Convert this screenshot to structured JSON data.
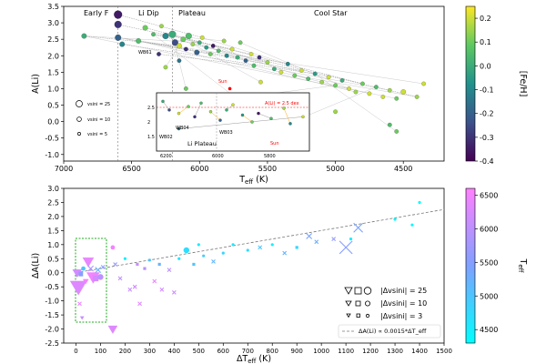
{
  "chart_data": [
    {
      "type": "scatter",
      "xlabel": "T_eff (K)",
      "ylabel": "A(Li)",
      "xlim": [
        7000,
        4200
      ],
      "ylim": [
        -1.2,
        3.5
      ],
      "x_axis_reversed": true,
      "grid": false,
      "xticks": [
        7000,
        6500,
        6000,
        5500,
        5000,
        4500
      ],
      "yticks": [
        -1.0,
        -0.5,
        0.0,
        0.5,
        1.0,
        1.5,
        2.0,
        2.5,
        3.0,
        3.5
      ],
      "region_labels": [
        "Early F",
        "Li Dip",
        "Plateau",
        "Cool Star"
      ],
      "region_boundaries": [
        6600,
        6200
      ],
      "marker_size_legend": [
        "vsini = 25",
        "vsini = 10",
        "vsini = 5"
      ],
      "colorbar": {
        "label": "[Fe/H]",
        "range": [
          -0.4,
          0.25
        ],
        "ticks": [
          0.2,
          0.1,
          0.0,
          -0.1,
          -0.2,
          -0.3,
          -0.4
        ],
        "colors": [
          "#440154",
          "#3b528b",
          "#21918c",
          "#5ec962",
          "#fde725"
        ]
      },
      "sun_label": "Sun",
      "points": [
        {
          "x": 6850,
          "y": 2.6,
          "feh": 0.0,
          "s": 4
        },
        {
          "x": 6600,
          "y": 3.25,
          "feh": -0.35,
          "s": 7
        },
        {
          "x": 6600,
          "y": 2.95,
          "feh": -0.3,
          "s": 6
        },
        {
          "x": 6600,
          "y": 2.55,
          "feh": -0.2,
          "s": 5
        },
        {
          "x": 6570,
          "y": 2.35,
          "feh": -0.1,
          "s": 4
        },
        {
          "x": 6400,
          "y": 2.85,
          "feh": 0.1,
          "s": 4
        },
        {
          "x": 6340,
          "y": 2.65,
          "feh": 0.05,
          "s": 3
        },
        {
          "x": 6280,
          "y": 2.9,
          "feh": 0.15,
          "s": 3
        },
        {
          "x": 6250,
          "y": 2.6,
          "feh": -0.1,
          "s": 5
        },
        {
          "x": 6200,
          "y": 2.65,
          "feh": 0.0,
          "s": 6
        },
        {
          "x": 6180,
          "y": 2.4,
          "feh": -0.25,
          "s": 5
        },
        {
          "x": 6150,
          "y": 2.3,
          "feh": 0.2,
          "s": 4
        },
        {
          "x": 6120,
          "y": 2.5,
          "feh": 0.1,
          "s": 4
        },
        {
          "x": 6100,
          "y": 2.2,
          "feh": -0.3,
          "s": 3
        },
        {
          "x": 6080,
          "y": 2.6,
          "feh": 0.05,
          "s": 5
        },
        {
          "x": 6050,
          "y": 2.35,
          "feh": 0.15,
          "s": 3
        },
        {
          "x": 6020,
          "y": 2.1,
          "feh": -0.2,
          "s": 4
        },
        {
          "x": 6000,
          "y": 2.4,
          "feh": 0.0,
          "s": 3
        },
        {
          "x": 5980,
          "y": 2.55,
          "feh": 0.2,
          "s": 3
        },
        {
          "x": 5950,
          "y": 2.25,
          "feh": -0.05,
          "s": 3
        },
        {
          "x": 5920,
          "y": 2.05,
          "feh": 0.1,
          "s": 3
        },
        {
          "x": 5900,
          "y": 2.3,
          "feh": -0.35,
          "s": 3
        },
        {
          "x": 5860,
          "y": 2.15,
          "feh": 0.05,
          "s": 3
        },
        {
          "x": 5820,
          "y": 2.45,
          "feh": 0.15,
          "s": 3
        },
        {
          "x": 5800,
          "y": 2.0,
          "feh": -0.1,
          "s": 3
        },
        {
          "x": 5760,
          "y": 2.2,
          "feh": 0.2,
          "s": 3
        },
        {
          "x": 5720,
          "y": 1.95,
          "feh": 0.0,
          "s": 3
        },
        {
          "x": 5700,
          "y": 2.4,
          "feh": 0.1,
          "s": 3
        },
        {
          "x": 5660,
          "y": 1.85,
          "feh": -0.2,
          "s": 3
        },
        {
          "x": 5620,
          "y": 2.05,
          "feh": 0.2,
          "s": 3
        },
        {
          "x": 5600,
          "y": 1.7,
          "feh": 0.05,
          "s": 3
        },
        {
          "x": 5560,
          "y": 1.95,
          "feh": -0.3,
          "s": 3
        },
        {
          "x": 5500,
          "y": 1.8,
          "feh": 0.15,
          "s": 3
        },
        {
          "x": 5450,
          "y": 1.6,
          "feh": 0.0,
          "s": 3
        },
        {
          "x": 5400,
          "y": 1.5,
          "feh": 0.2,
          "s": 3
        },
        {
          "x": 5350,
          "y": 1.75,
          "feh": -0.1,
          "s": 3
        },
        {
          "x": 5300,
          "y": 1.4,
          "feh": 0.1,
          "s": 3
        },
        {
          "x": 5250,
          "y": 1.55,
          "feh": 0.2,
          "s": 3
        },
        {
          "x": 5200,
          "y": 1.3,
          "feh": 0.05,
          "s": 3
        },
        {
          "x": 5150,
          "y": 1.45,
          "feh": -0.05,
          "s": 3
        },
        {
          "x": 5100,
          "y": 1.2,
          "feh": 0.15,
          "s": 3
        },
        {
          "x": 5050,
          "y": 1.35,
          "feh": 0.2,
          "s": 3
        },
        {
          "x": 5000,
          "y": 1.1,
          "feh": 0.1,
          "s": 3
        },
        {
          "x": 4950,
          "y": 1.25,
          "feh": 0.0,
          "s": 3
        },
        {
          "x": 4900,
          "y": 1.0,
          "feh": 0.2,
          "s": 3
        },
        {
          "x": 4850,
          "y": 0.9,
          "feh": 0.15,
          "s": 3
        },
        {
          "x": 4800,
          "y": 1.15,
          "feh": 0.1,
          "s": 3
        },
        {
          "x": 4750,
          "y": 0.85,
          "feh": 0.2,
          "s": 3
        },
        {
          "x": 4700,
          "y": 1.05,
          "feh": 0.05,
          "s": 3
        },
        {
          "x": 4650,
          "y": 0.75,
          "feh": 0.2,
          "s": 3
        },
        {
          "x": 4600,
          "y": 0.95,
          "feh": 0.15,
          "s": 3
        },
        {
          "x": 4550,
          "y": 0.7,
          "feh": 0.1,
          "s": 3
        },
        {
          "x": 4500,
          "y": 0.9,
          "feh": 0.2,
          "s": 4
        },
        {
          "x": 4400,
          "y": 0.75,
          "feh": 0.15,
          "s": 3
        },
        {
          "x": 4350,
          "y": 1.15,
          "feh": 0.2,
          "s": 3
        },
        {
          "x": 4600,
          "y": -0.1,
          "feh": 0.05,
          "s": 3
        },
        {
          "x": 4550,
          "y": -0.3,
          "feh": 0.1,
          "s": 3
        },
        {
          "x": 5600,
          "y": 0.3,
          "feh": 0.15,
          "s": 3
        },
        {
          "x": 5450,
          "y": 0.1,
          "feh": 0.0,
          "s": 3
        },
        {
          "x": 5850,
          "y": 0.65,
          "feh": 0.2,
          "s": 3
        },
        {
          "x": 6100,
          "y": 1.0,
          "feh": 0.1,
          "s": 3
        },
        {
          "x": 6300,
          "y": 2.05,
          "feh": -0.3,
          "s": 3
        },
        {
          "x": 6450,
          "y": 2.45,
          "feh": 0.05,
          "s": 4
        },
        {
          "x": 6250,
          "y": 1.65,
          "feh": 0.15,
          "s": 3
        },
        {
          "x": 6150,
          "y": 1.85,
          "feh": -0.15,
          "s": 3
        },
        {
          "x": 5400,
          "y": -0.15,
          "feh": 0.05,
          "s": 3
        },
        {
          "x": 5550,
          "y": 1.2,
          "feh": 0.2,
          "s": 3
        },
        {
          "x": 5000,
          "y": 0.3,
          "feh": 0.15,
          "s": 3
        }
      ],
      "inset": {
        "label": "Li Plateau",
        "ref_line_label": "A(Li) = 2.5 dex",
        "xticks": [
          6200,
          6000,
          5800
        ],
        "yticks": [
          1.5,
          2.0,
          2.5
        ],
        "sun_label": "Sun",
        "point_labels": [
          "WB02",
          "WB03",
          "WB04"
        ]
      },
      "point_labels": [
        "WB61"
      ]
    },
    {
      "type": "scatter",
      "xlabel": "ΔT_eff (K)",
      "ylabel": "ΔA(Li)",
      "xlim": [
        -50,
        1500
      ],
      "ylim": [
        -2.5,
        3.0
      ],
      "xticks": [
        0,
        100,
        200,
        300,
        400,
        500,
        600,
        700,
        800,
        900,
        1000,
        1100,
        1200,
        1300,
        1400,
        1500
      ],
      "yticks": [
        -2.5,
        -2.0,
        -1.5,
        -1.0,
        -0.5,
        0.0,
        0.5,
        1.0,
        1.5,
        2.0,
        2.5,
        3.0
      ],
      "fit": {
        "label": "ΔA(Li) ∝ 0.0015*ΔT_eff",
        "slope": 0.0015,
        "intercept": 0.0
      },
      "marker_legend": [
        "|Δvsini| = 25",
        "|Δvsini| = 10",
        "|Δvsini| = 3"
      ],
      "colorbar": {
        "label": "T_eff",
        "range": [
          4300,
          6600
        ],
        "ticks": [
          6500,
          6000,
          5500,
          5000,
          4500
        ],
        "colors": [
          "#00ffff",
          "#80a0ff",
          "#ff80ff"
        ]
      },
      "points": [
        {
          "x": 5,
          "y": 0.0,
          "m": "tri",
          "t": 6200,
          "s": 5
        },
        {
          "x": 10,
          "y": -0.5,
          "m": "tri",
          "t": 6300,
          "s": 9
        },
        {
          "x": 20,
          "y": -0.05,
          "m": "sq",
          "t": 5500,
          "s": 3
        },
        {
          "x": 30,
          "y": 0.15,
          "m": "circ",
          "t": 5000,
          "s": 3
        },
        {
          "x": 40,
          "y": -0.3,
          "m": "tri",
          "t": 6500,
          "s": 3
        },
        {
          "x": 50,
          "y": 0.4,
          "m": "tri",
          "t": 6400,
          "s": 6
        },
        {
          "x": 60,
          "y": 0.15,
          "m": "x",
          "t": 5800,
          "s": 3
        },
        {
          "x": 70,
          "y": -0.15,
          "m": "tri",
          "t": 6500,
          "s": 7
        },
        {
          "x": 80,
          "y": -0.2,
          "m": "sq",
          "t": 6200,
          "s": 4
        },
        {
          "x": 90,
          "y": 0.1,
          "m": "x",
          "t": 5200,
          "s": 3
        },
        {
          "x": 100,
          "y": -0.15,
          "m": "circ",
          "t": 6000,
          "s": 4
        },
        {
          "x": 110,
          "y": 0.2,
          "m": "x",
          "t": 5600,
          "s": 2
        },
        {
          "x": 25,
          "y": -1.6,
          "m": "tri",
          "t": 6100,
          "s": 2
        },
        {
          "x": 15,
          "y": -1.1,
          "m": "x",
          "t": 6400,
          "s": 2
        },
        {
          "x": 150,
          "y": 0.9,
          "m": "circ",
          "t": 6500,
          "s": 3
        },
        {
          "x": 150,
          "y": -2.0,
          "m": "tri",
          "t": 6300,
          "s": 5
        },
        {
          "x": 160,
          "y": 0.3,
          "m": "x",
          "t": 5700,
          "s": 2
        },
        {
          "x": 180,
          "y": -0.2,
          "m": "x",
          "t": 6000,
          "s": 2
        },
        {
          "x": 200,
          "y": 0.5,
          "m": "circ",
          "t": 4500,
          "s": 2
        },
        {
          "x": 220,
          "y": -0.6,
          "m": "x",
          "t": 6100,
          "s": 2
        },
        {
          "x": 240,
          "y": -0.5,
          "m": "x",
          "t": 6200,
          "s": 2
        },
        {
          "x": 250,
          "y": 0.3,
          "m": "sq",
          "t": 6100,
          "s": 2
        },
        {
          "x": 260,
          "y": -1.1,
          "m": "x",
          "t": 6300,
          "s": 2
        },
        {
          "x": 280,
          "y": 0.15,
          "m": "sq",
          "t": 5900,
          "s": 2
        },
        {
          "x": 300,
          "y": 0.45,
          "m": "circ",
          "t": 5000,
          "s": 2
        },
        {
          "x": 320,
          "y": -0.3,
          "m": "x",
          "t": 6400,
          "s": 2
        },
        {
          "x": 340,
          "y": 0.3,
          "m": "sq",
          "t": 5200,
          "s": 2
        },
        {
          "x": 350,
          "y": -0.6,
          "m": "x",
          "t": 6200,
          "s": 2
        },
        {
          "x": 380,
          "y": 0.1,
          "m": "x",
          "t": 6000,
          "s": 2
        },
        {
          "x": 400,
          "y": -0.7,
          "m": "x",
          "t": 6100,
          "s": 2
        },
        {
          "x": 420,
          "y": 0.5,
          "m": "circ",
          "t": 4600,
          "s": 2
        },
        {
          "x": 450,
          "y": 0.8,
          "m": "circ",
          "t": 4700,
          "s": 4
        },
        {
          "x": 480,
          "y": 0.3,
          "m": "sq",
          "t": 5000,
          "s": 2
        },
        {
          "x": 500,
          "y": 1.0,
          "m": "circ",
          "t": 4500,
          "s": 2
        },
        {
          "x": 520,
          "y": 0.6,
          "m": "circ",
          "t": 4900,
          "s": 2
        },
        {
          "x": 560,
          "y": 0.4,
          "m": "x",
          "t": 5200,
          "s": 2
        },
        {
          "x": 600,
          "y": 0.7,
          "m": "circ",
          "t": 4800,
          "s": 2
        },
        {
          "x": 640,
          "y": 1.0,
          "m": "circ",
          "t": 4600,
          "s": 2
        },
        {
          "x": 700,
          "y": 0.8,
          "m": "circ",
          "t": 4700,
          "s": 2
        },
        {
          "x": 750,
          "y": 0.9,
          "m": "x",
          "t": 5000,
          "s": 2
        },
        {
          "x": 800,
          "y": 1.0,
          "m": "circ",
          "t": 4500,
          "s": 2
        },
        {
          "x": 850,
          "y": 0.7,
          "m": "x",
          "t": 5200,
          "s": 2
        },
        {
          "x": 900,
          "y": 0.9,
          "m": "sq",
          "t": 4800,
          "s": 2
        },
        {
          "x": 950,
          "y": 1.3,
          "m": "x",
          "t": 5400,
          "s": 3
        },
        {
          "x": 980,
          "y": 1.1,
          "m": "x",
          "t": 5300,
          "s": 2
        },
        {
          "x": 1050,
          "y": 1.2,
          "m": "x",
          "t": 5600,
          "s": 2
        },
        {
          "x": 1100,
          "y": 0.9,
          "m": "x",
          "t": 5500,
          "s": 7
        },
        {
          "x": 1150,
          "y": 1.6,
          "m": "x",
          "t": 5400,
          "s": 5
        },
        {
          "x": 1120,
          "y": 1.2,
          "m": "circ",
          "t": 4500,
          "s": 2
        },
        {
          "x": 1300,
          "y": 1.9,
          "m": "circ",
          "t": 4400,
          "s": 2
        },
        {
          "x": 1400,
          "y": 2.5,
          "m": "circ",
          "t": 4300,
          "s": 2
        },
        {
          "x": 1370,
          "y": 1.7,
          "m": "circ",
          "t": 4400,
          "s": 2
        }
      ]
    }
  ]
}
